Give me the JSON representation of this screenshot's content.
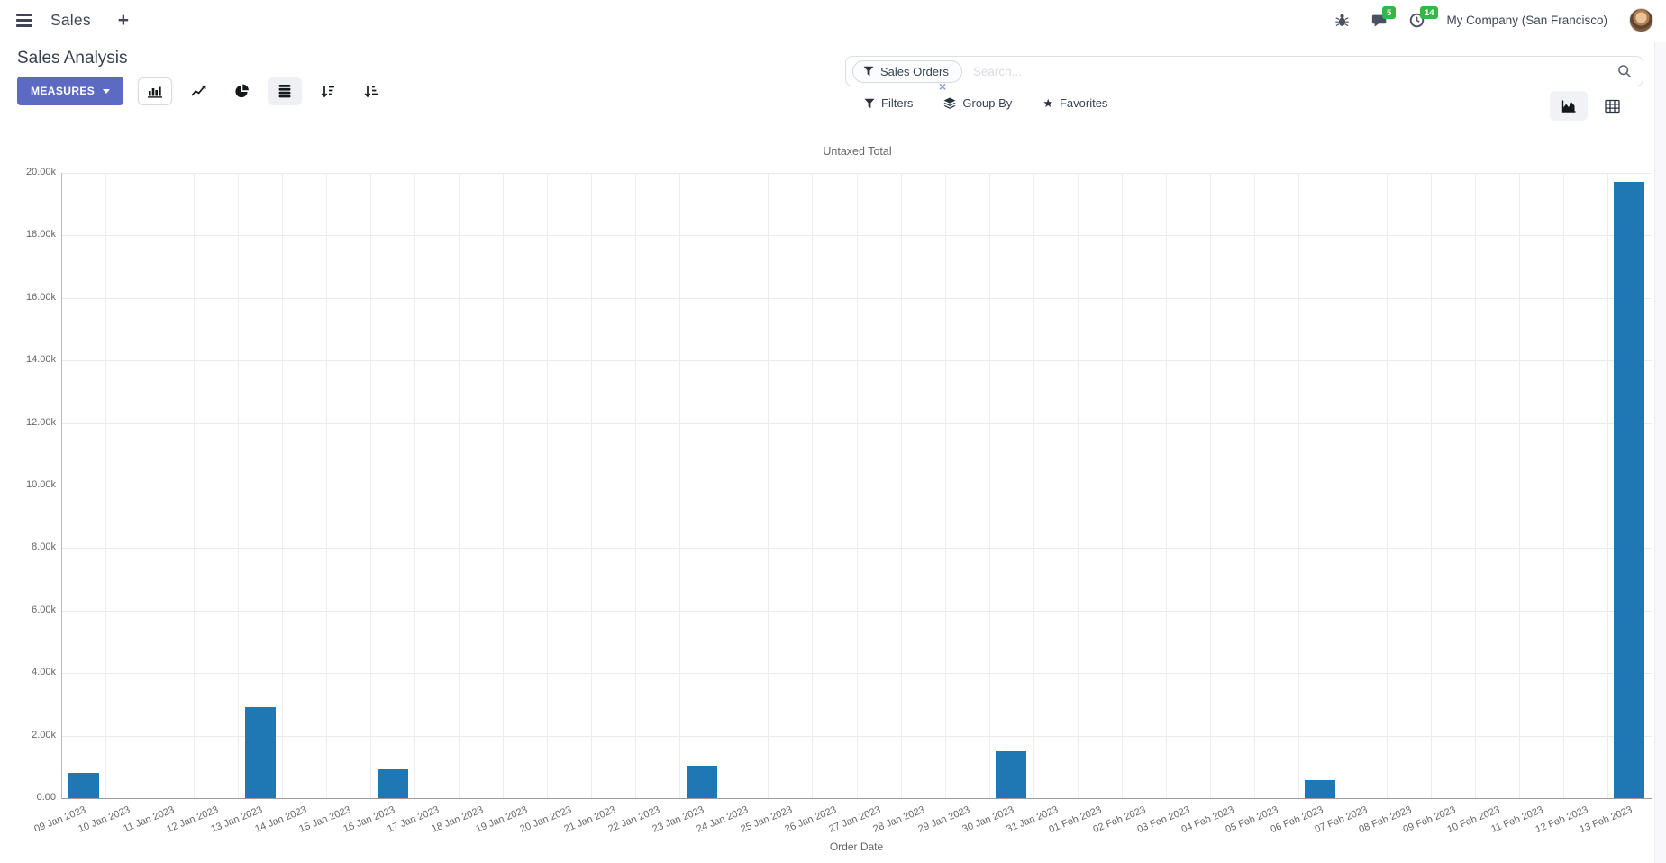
{
  "navbar": {
    "app_name": "Sales",
    "message_count": "5",
    "activity_count": "14",
    "company": "My Company (San Francisco)"
  },
  "control_panel": {
    "title": "Sales Analysis",
    "measures_label": "MEASURES",
    "search": {
      "facet_label": "Sales Orders",
      "placeholder": "Search...",
      "remove_facet_glyph": "×"
    },
    "filter_buttons": {
      "filters": "Filters",
      "group_by": "Group By",
      "favorites": "Favorites"
    }
  },
  "icons": {
    "nav": [
      "menu-icon",
      "plus-icon",
      "bug-icon",
      "messages-icon",
      "activities-clock-icon"
    ],
    "view_types": [
      "bar-chart-icon",
      "line-chart-icon",
      "pie-chart-icon",
      "stacked-icon",
      "sort-descending-icon",
      "sort-ascending-icon"
    ],
    "search": [
      "filter-funnel-icon",
      "search-icon"
    ],
    "switcher": [
      "graph-view-icon",
      "pivot-view-icon"
    ]
  },
  "colors": {
    "accent": "#5c6ac2",
    "bar": "#1f77b4",
    "badge_green": "#38b44a"
  },
  "chart_data": {
    "type": "bar",
    "title": "",
    "legend_position": "top",
    "grid": true,
    "xlabel": "Order Date",
    "ylabel": "",
    "ylim": [
      0,
      20000
    ],
    "ytick_step": 2000,
    "ytick_labels": [
      "0.00",
      "2.00k",
      "4.00k",
      "6.00k",
      "8.00k",
      "10.00k",
      "12.00k",
      "14.00k",
      "16.00k",
      "18.00k",
      "20.00k"
    ],
    "categories": [
      "09 Jan 2023",
      "10 Jan 2023",
      "11 Jan 2023",
      "12 Jan 2023",
      "13 Jan 2023",
      "14 Jan 2023",
      "15 Jan 2023",
      "16 Jan 2023",
      "17 Jan 2023",
      "18 Jan 2023",
      "19 Jan 2023",
      "20 Jan 2023",
      "21 Jan 2023",
      "22 Jan 2023",
      "23 Jan 2023",
      "24 Jan 2023",
      "25 Jan 2023",
      "26 Jan 2023",
      "27 Jan 2023",
      "28 Jan 2023",
      "29 Jan 2023",
      "30 Jan 2023",
      "31 Jan 2023",
      "01 Feb 2023",
      "02 Feb 2023",
      "03 Feb 2023",
      "04 Feb 2023",
      "05 Feb 2023",
      "06 Feb 2023",
      "07 Feb 2023",
      "08 Feb 2023",
      "09 Feb 2023",
      "10 Feb 2023",
      "11 Feb 2023",
      "12 Feb 2023",
      "13 Feb 2023"
    ],
    "series": [
      {
        "name": "Untaxed Total",
        "color": "#1f77b4",
        "values": [
          800,
          0,
          0,
          0,
          2900,
          0,
          0,
          920,
          0,
          0,
          0,
          0,
          0,
          0,
          1040,
          0,
          0,
          0,
          0,
          0,
          0,
          1500,
          0,
          0,
          0,
          0,
          0,
          0,
          580,
          0,
          0,
          0,
          0,
          0,
          0,
          19700
        ]
      }
    ]
  }
}
